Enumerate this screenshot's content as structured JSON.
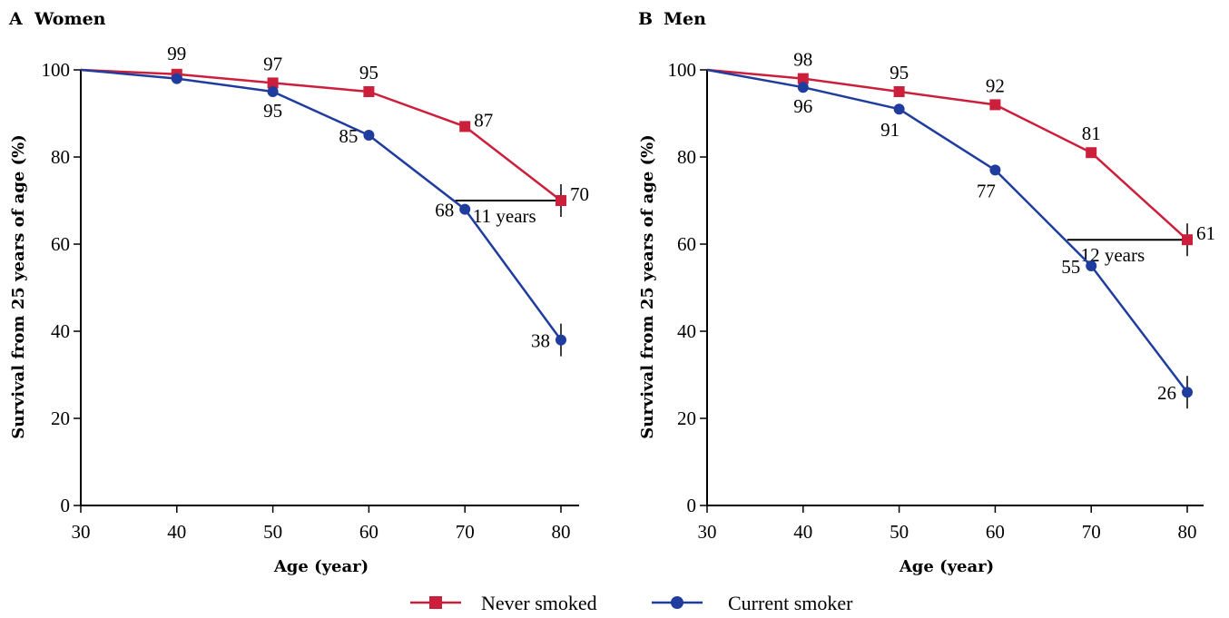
{
  "chart_data": [
    {
      "type": "line",
      "title": "Women",
      "panel_letter": "A",
      "xlabel": "Age (year)",
      "ylabel": "Survival from 25 years of age (%)",
      "x": [
        30,
        40,
        50,
        60,
        70,
        80
      ],
      "xlim": [
        30,
        80
      ],
      "ylim": [
        0,
        100
      ],
      "xticks": [
        30,
        40,
        50,
        60,
        70,
        80
      ],
      "yticks": [
        0,
        20,
        40,
        60,
        80,
        100
      ],
      "grid": false,
      "series": [
        {
          "name": "Never smoked",
          "values": [
            100,
            99,
            97,
            95,
            87,
            70
          ],
          "labels": [
            "",
            "99",
            "97",
            "95",
            "87",
            "70"
          ],
          "color": "#cc1f3c",
          "marker": "square"
        },
        {
          "name": "Current smoker",
          "values": [
            100,
            98,
            95,
            85,
            68,
            38
          ],
          "labels": [
            "",
            "",
            "95",
            "85",
            "68",
            "38"
          ],
          "color": "#1f3d9e",
          "marker": "circle"
        }
      ],
      "annotation": {
        "text": "11 years",
        "from_x": 69,
        "to_x": 80,
        "y": 70
      }
    },
    {
      "type": "line",
      "title": "Men",
      "panel_letter": "B",
      "xlabel": "Age (year)",
      "ylabel": "Survival from 25 years of age (%)",
      "x": [
        30,
        40,
        50,
        60,
        70,
        80
      ],
      "xlim": [
        30,
        80
      ],
      "ylim": [
        0,
        100
      ],
      "xticks": [
        30,
        40,
        50,
        60,
        70,
        80
      ],
      "yticks": [
        0,
        20,
        40,
        60,
        80,
        100
      ],
      "grid": false,
      "series": [
        {
          "name": "Never smoked",
          "values": [
            100,
            98,
            95,
            92,
            81,
            61
          ],
          "labels": [
            "",
            "98",
            "95",
            "92",
            "81",
            "61"
          ],
          "color": "#cc1f3c",
          "marker": "square"
        },
        {
          "name": "Current smoker",
          "values": [
            100,
            96,
            91,
            77,
            55,
            26
          ],
          "labels": [
            "",
            "96",
            "91",
            "77",
            "55",
            "26"
          ],
          "color": "#1f3d9e",
          "marker": "circle"
        }
      ],
      "annotation": {
        "text": "12 years",
        "from_x": 67.5,
        "to_x": 80,
        "y": 61
      }
    }
  ],
  "legend": {
    "placement": "bottom-center",
    "items": [
      {
        "label": "Never smoked",
        "color": "#cc1f3c",
        "marker": "square"
      },
      {
        "label": "Current smoker",
        "color": "#1f3d9e",
        "marker": "circle"
      }
    ]
  }
}
